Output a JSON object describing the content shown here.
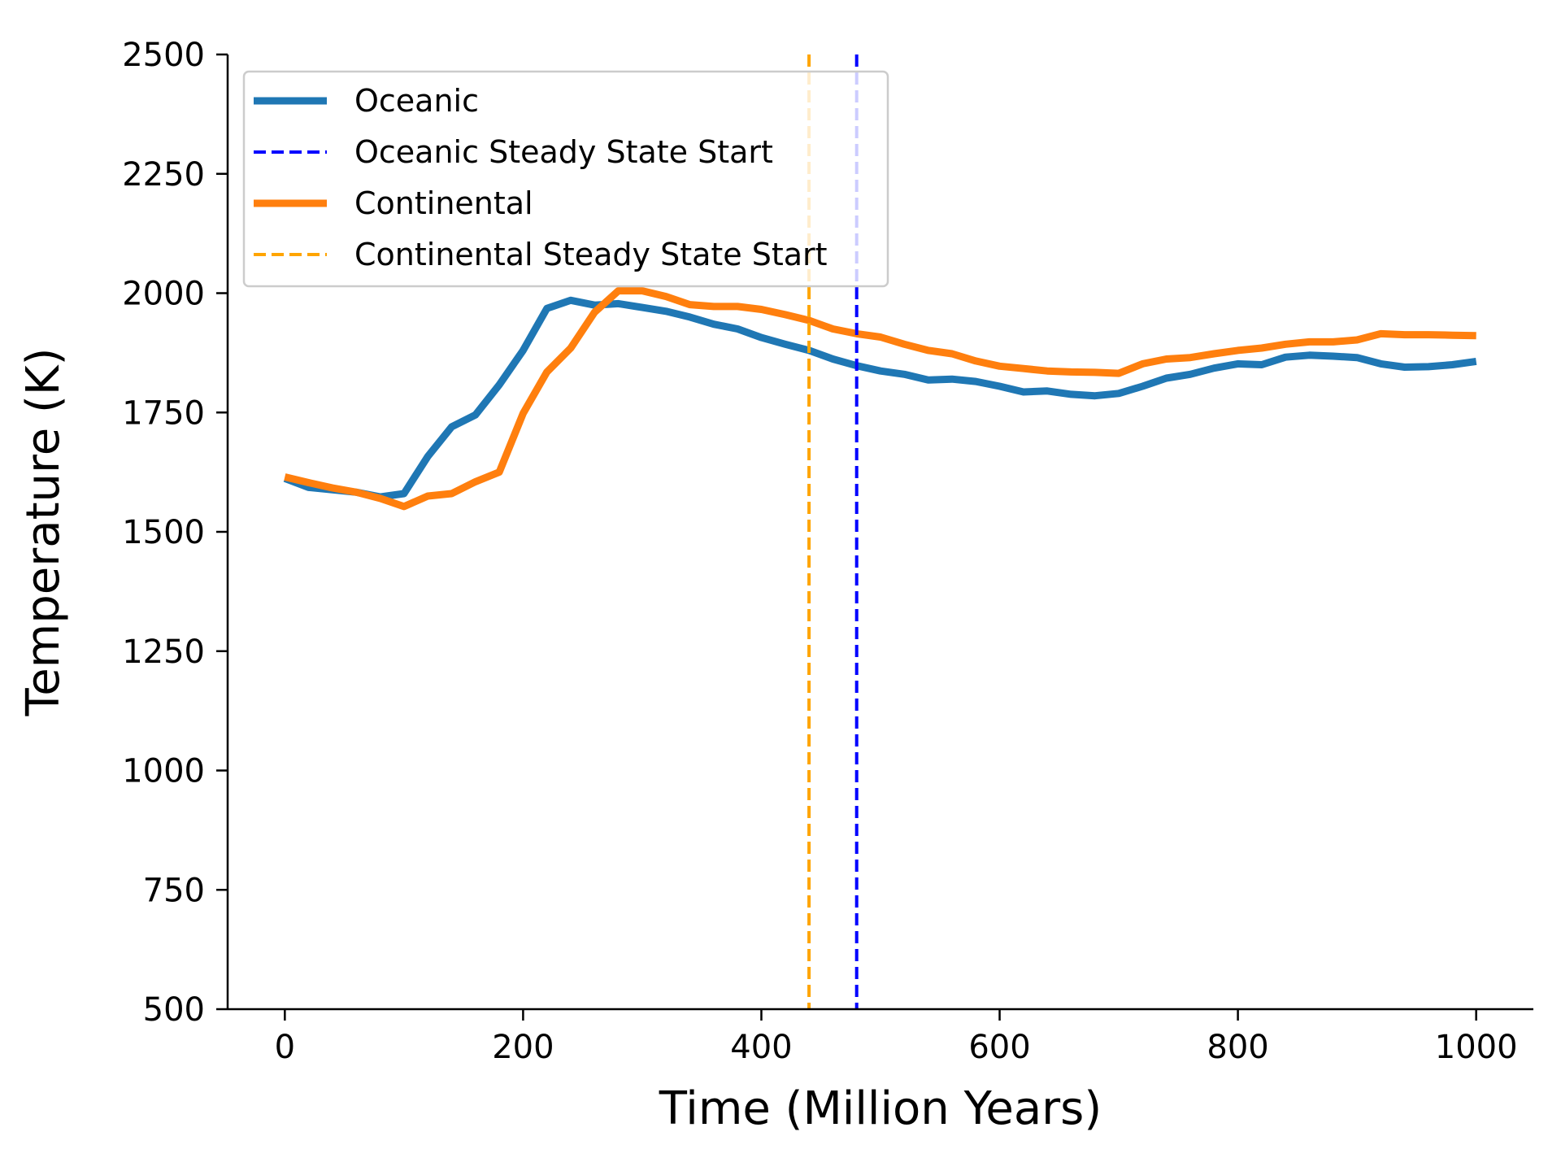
{
  "chart_data": {
    "type": "line",
    "title": "",
    "xlabel": "Time (Million Years)",
    "ylabel": "Temperature (K)",
    "xlim": [
      -48,
      1048
    ],
    "ylim": [
      500,
      2500
    ],
    "xticks": [
      0,
      200,
      400,
      600,
      800,
      1000
    ],
    "yticks": [
      500,
      750,
      1000,
      1250,
      1500,
      1750,
      2000,
      2250,
      2500
    ],
    "grid": false,
    "legend": "top-left",
    "x": [
      0,
      20,
      40,
      60,
      80,
      100,
      120,
      140,
      160,
      180,
      200,
      220,
      240,
      260,
      280,
      300,
      320,
      340,
      360,
      380,
      400,
      420,
      440,
      460,
      480,
      500,
      520,
      540,
      560,
      580,
      600,
      620,
      640,
      660,
      680,
      700,
      720,
      740,
      760,
      780,
      800,
      820,
      840,
      860,
      880,
      900,
      920,
      940,
      960,
      980,
      1000
    ],
    "series": [
      {
        "name": "Oceanic",
        "color": "#1f77b4",
        "style": "solid",
        "values": [
          1612,
          1593,
          1588,
          1583,
          1573,
          1580,
          1658,
          1720,
          1745,
          1808,
          1880,
          1968,
          1985,
          1975,
          1978,
          1970,
          1962,
          1950,
          1935,
          1925,
          1907,
          1893,
          1880,
          1862,
          1848,
          1837,
          1830,
          1818,
          1820,
          1815,
          1805,
          1793,
          1795,
          1788,
          1785,
          1790,
          1805,
          1822,
          1830,
          1843,
          1852,
          1850,
          1866,
          1870,
          1868,
          1865,
          1852,
          1845,
          1846,
          1850,
          1857
        ]
      },
      {
        "name": "Continental",
        "color": "#ff7f0e",
        "style": "solid",
        "values": [
          1615,
          1603,
          1592,
          1583,
          1570,
          1553,
          1575,
          1580,
          1605,
          1625,
          1748,
          1835,
          1885,
          1960,
          2005,
          2005,
          1993,
          1976,
          1972,
          1972,
          1966,
          1955,
          1943,
          1925,
          1915,
          1908,
          1893,
          1880,
          1873,
          1858,
          1847,
          1842,
          1837,
          1835,
          1834,
          1832,
          1852,
          1862,
          1865,
          1873,
          1880,
          1885,
          1893,
          1898,
          1898,
          1902,
          1915,
          1913,
          1913,
          1912,
          1911
        ]
      }
    ],
    "vlines": [
      {
        "name": "Oceanic Steady State Start",
        "x": 480,
        "color": "#0000ff",
        "style": "dashed"
      },
      {
        "name": "Continental Steady State Start",
        "x": 440,
        "color": "#ffa500",
        "style": "dashed"
      }
    ],
    "legend_entries": [
      "Oceanic",
      "Oceanic Steady State Start",
      "Continental",
      "Continental Steady State Start"
    ]
  }
}
